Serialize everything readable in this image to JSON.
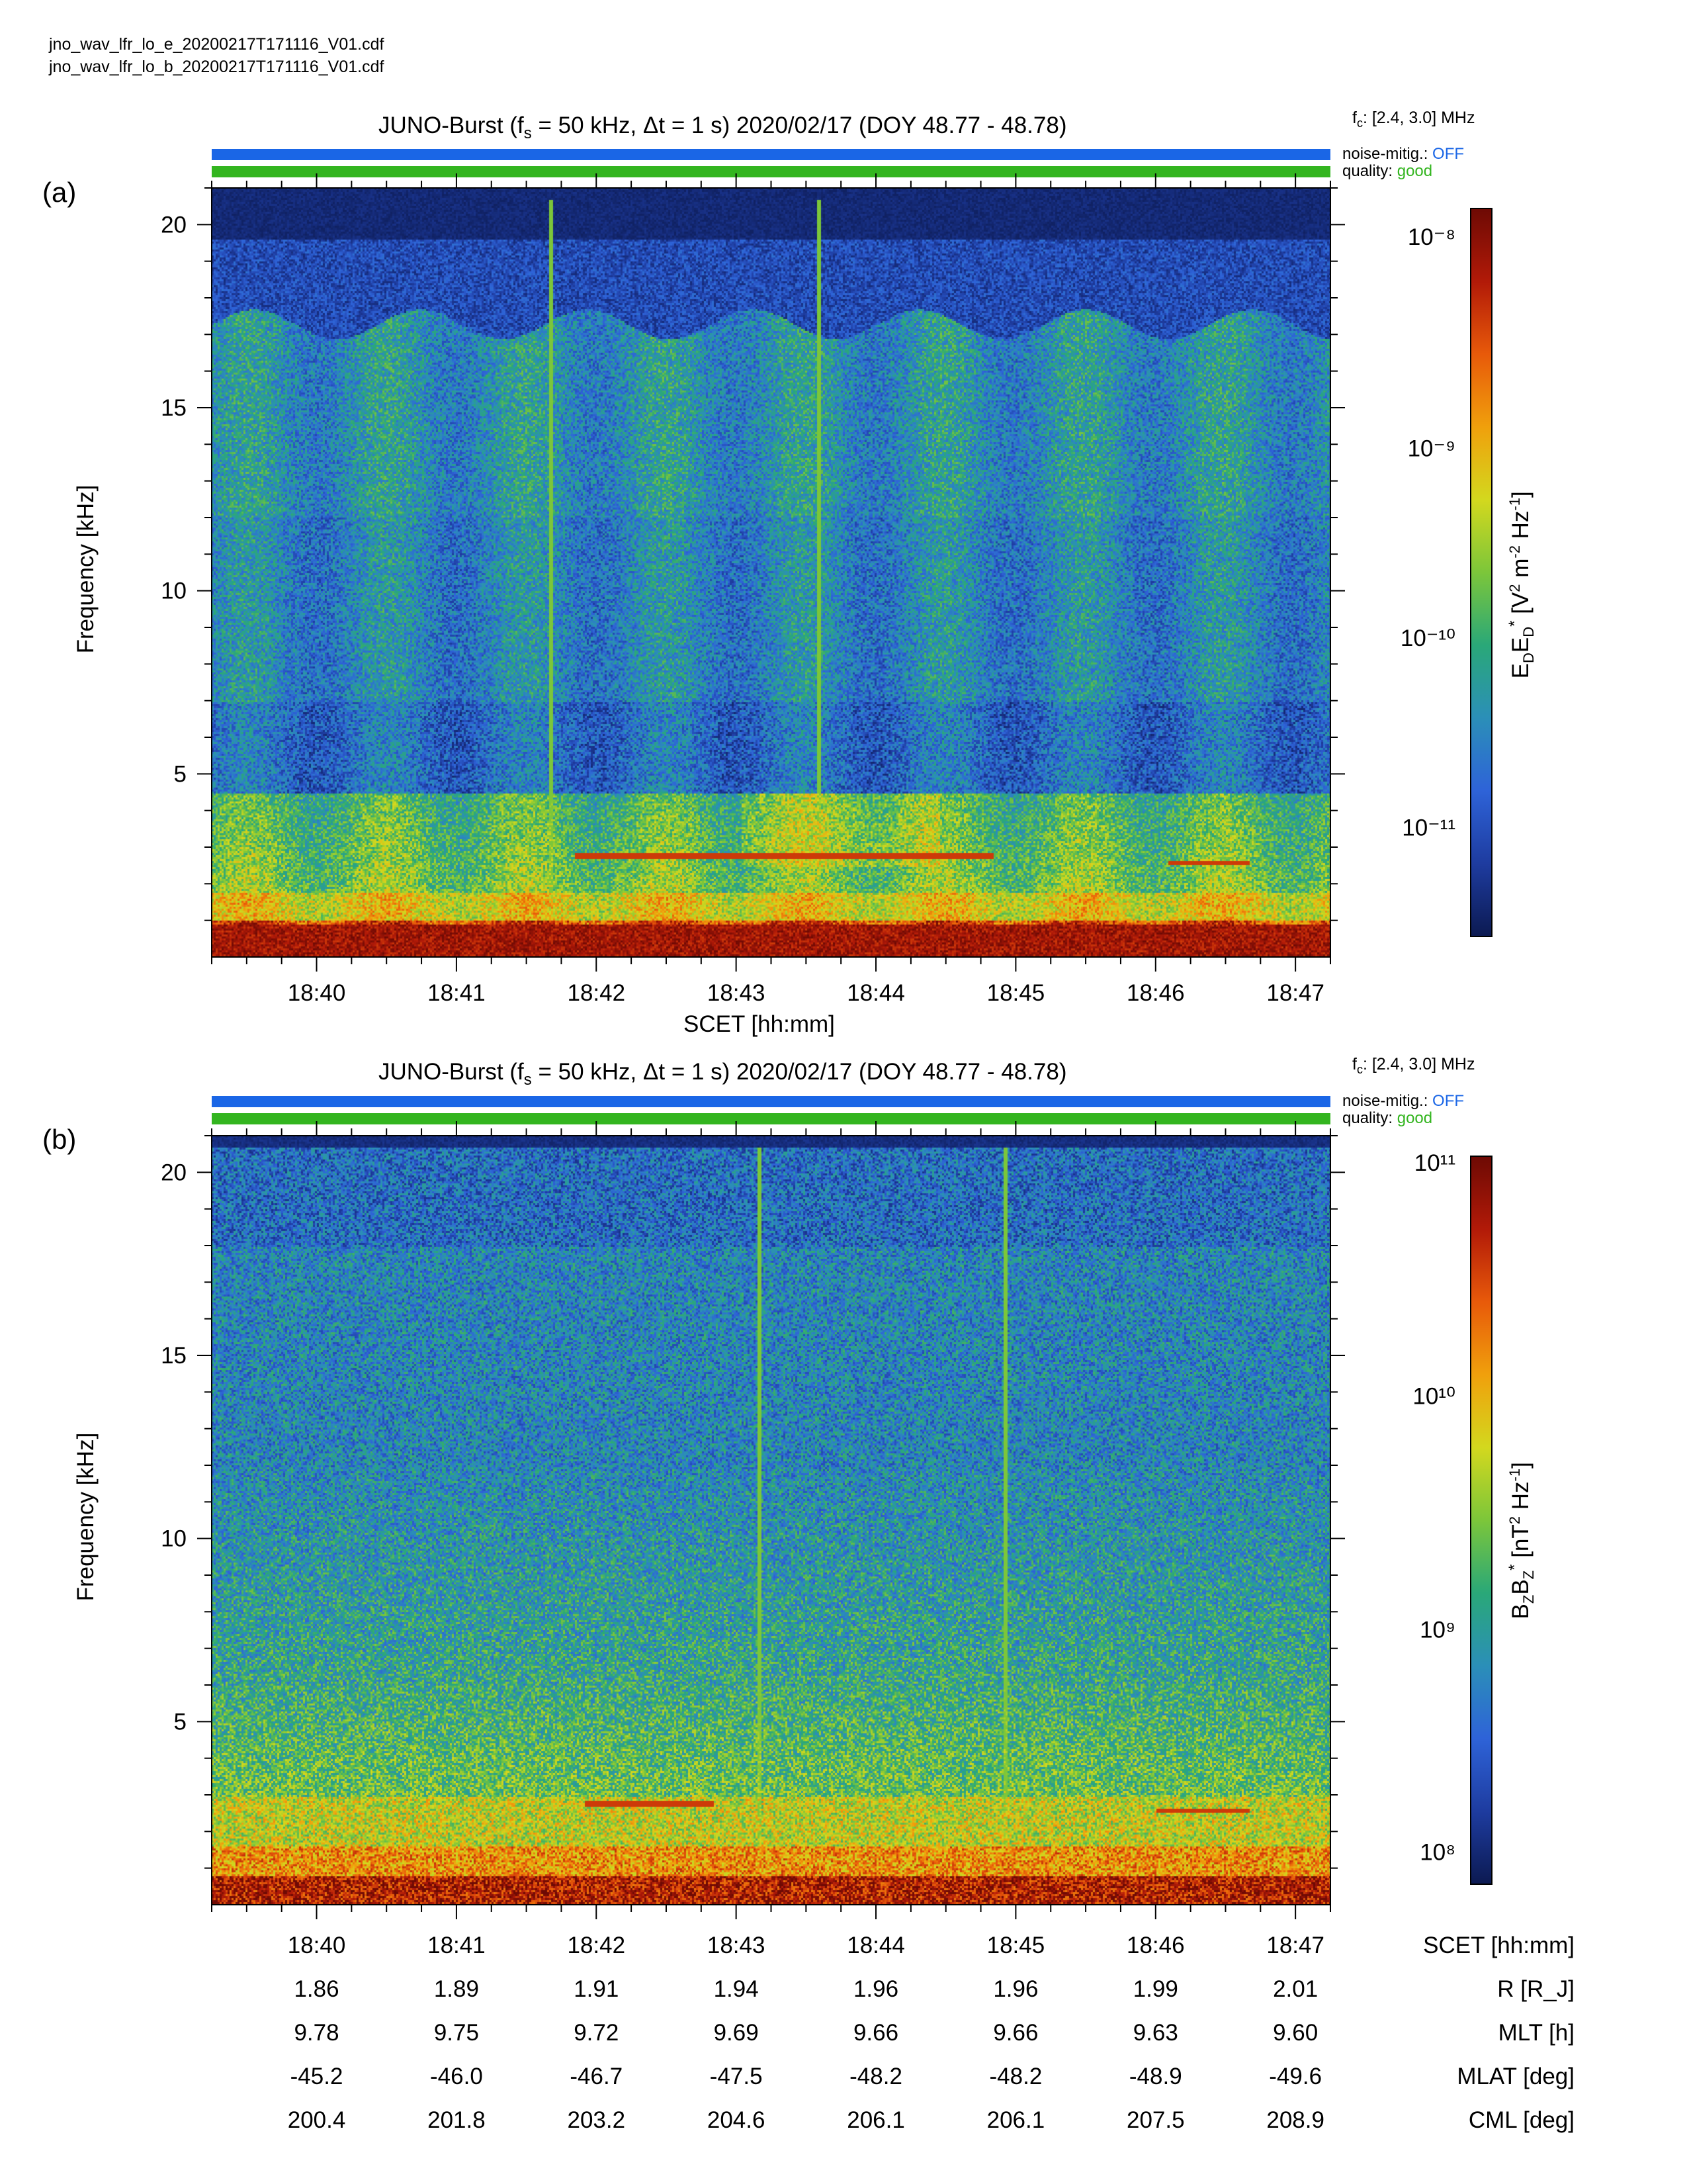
{
  "files": [
    "jno_wav_lfr_lo_e_20200217T171116_V01.cdf",
    "jno_wav_lfr_lo_b_20200217T171116_V01.cdf"
  ],
  "colors": {
    "noise_bar": "#1a66e6",
    "quality_bar": "#33b51f",
    "off_text": "#1a66e6",
    "good_text": "#33b51f",
    "colormap": [
      "#0c1a52",
      "#1e3ca0",
      "#2e63d8",
      "#2b8fb8",
      "#2aa878",
      "#7cc63a",
      "#d3d81e",
      "#f0a00c",
      "#e85a0a",
      "#b21a08",
      "#6e0a04"
    ]
  },
  "panels": [
    {
      "letter": "(a)",
      "title_prefix": "JUNO-Burst (f",
      "title_sub": "s",
      "title_suffix": " = 50 kHz, Δt = 1 s)  2020/02/17 (DOY 48.77 - 48.78)",
      "fc_f": "f",
      "fc_sub": "c",
      "fc_value": ": [2.4, 3.0] MHz",
      "noise_label": "noise-mitig.:",
      "noise_value": "OFF",
      "quality_label": "quality:",
      "quality_value": "good",
      "ylabel": "Frequency [kHz]",
      "xlabel": "SCET [hh:mm]",
      "cbar_label": "E_D E_D* [V^2 m^-2 Hz^-1]",
      "cbar_ticks": [
        "10⁻⁸",
        "10⁻⁹",
        "10⁻¹⁰",
        "10⁻¹¹"
      ]
    },
    {
      "letter": "(b)",
      "title_prefix": "JUNO-Burst (f",
      "title_sub": "s",
      "title_suffix": " = 50 kHz, Δt = 1 s)  2020/02/17 (DOY 48.77 - 48.78)",
      "fc_f": "f",
      "fc_sub": "c",
      "fc_value": ": [2.4, 3.0] MHz",
      "noise_label": "noise-mitig.:",
      "noise_value": "OFF",
      "quality_label": "quality:",
      "quality_value": "good",
      "ylabel": "Frequency [kHz]",
      "xlabel": "",
      "cbar_label": "B_Z B_Z* [nT^2 Hz^-1]",
      "cbar_ticks": [
        "10¹¹",
        "10¹⁰",
        "10⁹",
        "10⁸"
      ]
    }
  ],
  "chart_data": [
    {
      "type": "heatmap",
      "title": "JUNO-Burst (fs = 50 kHz, Δt = 1 s)  2020/02/17 (DOY 48.77 - 48.78)",
      "xlabel": "SCET [hh:mm]",
      "ylabel": "Frequency [kHz]",
      "x_ticks": [
        "18:40",
        "18:41",
        "18:42",
        "18:43",
        "18:44",
        "18:45",
        "18:46",
        "18:47"
      ],
      "y_ticks": [
        5,
        10,
        15,
        20
      ],
      "ylim": [
        0,
        21
      ],
      "x_range": [
        "18:39:15",
        "18:47:15"
      ],
      "colorbar": {
        "label": "E_D E_D* [V^2 m^-2 Hz^-1]",
        "scale": "log",
        "range": [
          1e-12,
          1.2e-08
        ]
      },
      "features": [
        {
          "kind": "narrowband emission",
          "freq_khz": 2.8,
          "from": "18:41:50",
          "to": "18:44:50"
        },
        {
          "kind": "narrowband emission",
          "freq_khz": 2.6,
          "from": "18:46:05",
          "to": "18:46:40"
        },
        {
          "kind": "broadband spike",
          "time": "18:41:40"
        },
        {
          "kind": "broadband spike",
          "time": "18:43:35"
        }
      ]
    },
    {
      "type": "heatmap",
      "title": "JUNO-Burst (fs = 50 kHz, Δt = 1 s)  2020/02/17 (DOY 48.77 - 48.78)",
      "xlabel": "SCET [hh:mm]",
      "ylabel": "Frequency [kHz]",
      "x_ticks": [
        "18:40",
        "18:41",
        "18:42",
        "18:43",
        "18:44",
        "18:45",
        "18:46",
        "18:47"
      ],
      "y_ticks": [
        5,
        10,
        15,
        20
      ],
      "ylim": [
        0,
        21
      ],
      "x_range": [
        "18:39:15",
        "18:47:15"
      ],
      "colorbar": {
        "label": "B_Z B_Z* [nT^2 Hz^-1]",
        "scale": "log",
        "range": [
          70000000.0,
          110000000000.0
        ]
      },
      "features": [
        {
          "kind": "narrowband emission",
          "freq_khz": 2.8,
          "from": "18:41:55",
          "to": "18:42:50"
        },
        {
          "kind": "narrowband emission",
          "freq_khz": 2.6,
          "from": "18:46:00",
          "to": "18:46:40"
        },
        {
          "kind": "broadband spike",
          "time": "18:43:10"
        },
        {
          "kind": "broadband spike",
          "time": "18:44:55"
        }
      ]
    }
  ],
  "ephemeris": {
    "times": [
      "18:40",
      "18:41",
      "18:42",
      "18:43",
      "18:44",
      "18:45",
      "18:46",
      "18:47"
    ],
    "rows": [
      {
        "label": "SCET [hh:mm]",
        "values": [
          "18:40",
          "18:41",
          "18:42",
          "18:43",
          "18:44",
          "18:45",
          "18:46",
          "18:47"
        ]
      },
      {
        "label": "R [R_J]",
        "values": [
          "1.86",
          "1.89",
          "1.91",
          "1.94",
          "1.96",
          "1.96",
          "1.99",
          "2.01"
        ]
      },
      {
        "label": "MLT [h]",
        "values": [
          "9.78",
          "9.75",
          "9.72",
          "9.69",
          "9.66",
          "9.66",
          "9.63",
          "9.60"
        ]
      },
      {
        "label": "MLAT [deg]",
        "values": [
          "-45.2",
          "-46.0",
          "-46.7",
          "-47.5",
          "-48.2",
          "-48.2",
          "-48.9",
          "-49.6"
        ]
      },
      {
        "label": "CML [deg]",
        "values": [
          "200.4",
          "201.8",
          "203.2",
          "204.6",
          "206.1",
          "206.1",
          "207.5",
          "208.9"
        ]
      }
    ]
  }
}
